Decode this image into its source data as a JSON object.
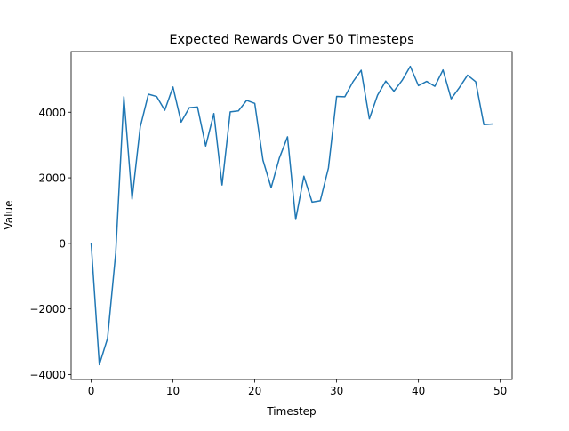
{
  "chart_data": {
    "type": "line",
    "title": "Expected Rewards Over 50 Timesteps",
    "xlabel": "Timestep",
    "ylabel": "Value",
    "xlim": [
      -2.45,
      51.45
    ],
    "ylim": [
      -4150,
      5850
    ],
    "x_ticks": [
      0,
      10,
      20,
      30,
      40,
      50
    ],
    "y_ticks": [
      -4000,
      -2000,
      0,
      2000,
      4000
    ],
    "grid": false,
    "legend": "none",
    "line_color": "#1f77b4",
    "series": [
      {
        "x": [
          0,
          1,
          2,
          3,
          4,
          5,
          6,
          7,
          8,
          9,
          10,
          11,
          12,
          13,
          14,
          15,
          16,
          17,
          18,
          19,
          20,
          21,
          22,
          23,
          24,
          25,
          26,
          27,
          28,
          29,
          30,
          31,
          32,
          33,
          34,
          35,
          36,
          37,
          38,
          39,
          40,
          41,
          42,
          43,
          44,
          45,
          46,
          47,
          48,
          49
        ],
        "values": [
          0,
          -3700,
          -2900,
          -300,
          4470,
          1350,
          3550,
          4550,
          4480,
          4060,
          4770,
          3700,
          4140,
          4160,
          2970,
          3960,
          1780,
          4010,
          4040,
          4360,
          4270,
          2540,
          1700,
          2600,
          3250,
          730,
          2050,
          1260,
          1300,
          2300,
          4480,
          4470,
          4930,
          5280,
          3800,
          4520,
          4950,
          4640,
          4970,
          5400,
          4810,
          4940,
          4790,
          5290,
          4410,
          4750,
          5130,
          4930,
          3620,
          3640
        ]
      }
    ]
  }
}
